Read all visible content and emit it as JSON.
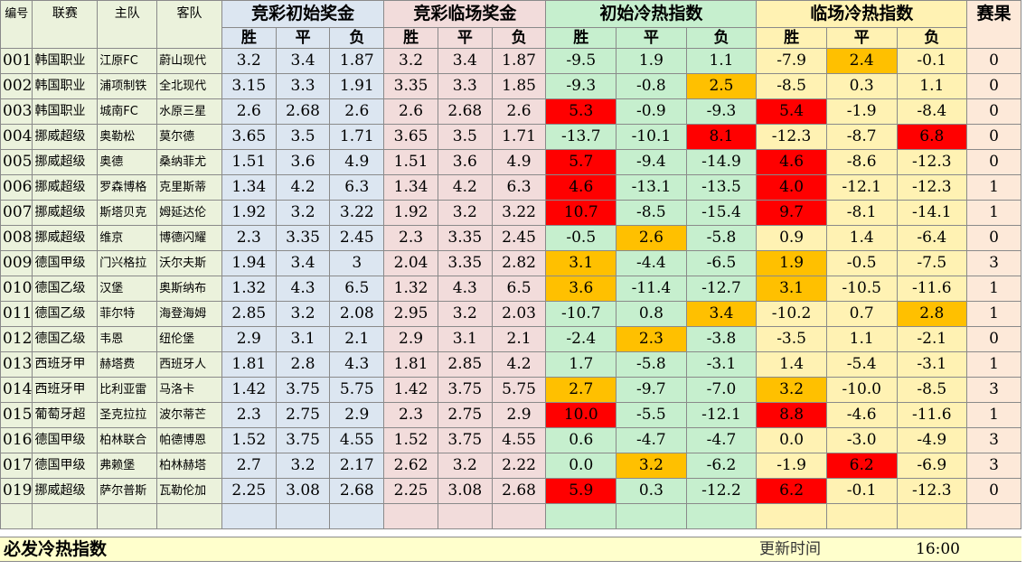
{
  "headers": {
    "id": "编号",
    "league": "联赛",
    "home": "主队",
    "away": "客队",
    "initial_odds": "竞彩初始奖金",
    "live_odds": "竞彩临场奖金",
    "initial_index": "初始冷热指数",
    "live_index": "临场冷热指数",
    "result": "赛果",
    "win": "胜",
    "draw": "平",
    "lose": "负"
  },
  "highlight_colors": {
    "red": "#ff0000",
    "orange": "#ffc000"
  },
  "rows": [
    {
      "id": "001",
      "league": "韩国职业",
      "home": "江原FC",
      "away": "蔚山现代",
      "i": [
        "3.2",
        "3.4",
        "1.87"
      ],
      "l": [
        "3.2",
        "3.4",
        "1.87"
      ],
      "ci": [
        "-9.5",
        "1.9",
        "1.1"
      ],
      "cl": [
        "-7.9",
        "2.4",
        "-0.1"
      ],
      "res": "0",
      "hi": [
        "",
        "",
        ""
      ],
      "hl": [
        "",
        "org",
        ""
      ]
    },
    {
      "id": "002",
      "league": "韩国职业",
      "home": "浦项制铁",
      "away": "全北现代",
      "i": [
        "3.15",
        "3.3",
        "1.91"
      ],
      "l": [
        "3.35",
        "3.3",
        "1.85"
      ],
      "ci": [
        "-9.3",
        "-0.8",
        "2.5"
      ],
      "cl": [
        "-8.5",
        "0.3",
        "1.1"
      ],
      "res": "0",
      "hi": [
        "",
        "",
        "org"
      ],
      "hl": [
        "",
        "",
        ""
      ]
    },
    {
      "id": "003",
      "league": "韩国职业",
      "home": "城南FC",
      "away": "水原三星",
      "i": [
        "2.6",
        "2.68",
        "2.6"
      ],
      "l": [
        "2.6",
        "2.68",
        "2.6"
      ],
      "ci": [
        "5.3",
        "-0.9",
        "-9.3"
      ],
      "cl": [
        "5.4",
        "-1.9",
        "-8.4"
      ],
      "res": "0",
      "hi": [
        "red",
        "",
        ""
      ],
      "hl": [
        "red",
        "",
        ""
      ]
    },
    {
      "id": "004",
      "league": "挪威超级",
      "home": "奥勒松",
      "away": "莫尔德",
      "i": [
        "3.65",
        "3.5",
        "1.71"
      ],
      "l": [
        "3.65",
        "3.5",
        "1.71"
      ],
      "ci": [
        "-13.7",
        "-10.1",
        "8.1"
      ],
      "cl": [
        "-12.3",
        "-8.7",
        "6.8"
      ],
      "res": "0",
      "hi": [
        "",
        "",
        "red"
      ],
      "hl": [
        "",
        "",
        "red"
      ]
    },
    {
      "id": "005",
      "league": "挪威超级",
      "home": "奥德",
      "away": "桑纳菲尤",
      "i": [
        "1.51",
        "3.6",
        "4.9"
      ],
      "l": [
        "1.51",
        "3.6",
        "4.9"
      ],
      "ci": [
        "5.7",
        "-9.4",
        "-14.9"
      ],
      "cl": [
        "4.6",
        "-8.6",
        "-12.3"
      ],
      "res": "0",
      "hi": [
        "red",
        "",
        ""
      ],
      "hl": [
        "red",
        "",
        ""
      ]
    },
    {
      "id": "006",
      "league": "挪威超级",
      "home": "罗森博格",
      "away": "克里斯蒂",
      "i": [
        "1.34",
        "4.2",
        "6.3"
      ],
      "l": [
        "1.34",
        "4.2",
        "6.3"
      ],
      "ci": [
        "4.6",
        "-13.1",
        "-13.5"
      ],
      "cl": [
        "4.0",
        "-12.1",
        "-12.3"
      ],
      "res": "1",
      "hi": [
        "red",
        "",
        ""
      ],
      "hl": [
        "red",
        "",
        ""
      ]
    },
    {
      "id": "007",
      "league": "挪威超级",
      "home": "斯塔贝克",
      "away": "姆延达伦",
      "i": [
        "1.92",
        "3.2",
        "3.22"
      ],
      "l": [
        "1.92",
        "3.2",
        "3.22"
      ],
      "ci": [
        "10.7",
        "-8.5",
        "-15.4"
      ],
      "cl": [
        "9.7",
        "-8.1",
        "-14.1"
      ],
      "res": "1",
      "hi": [
        "red",
        "",
        ""
      ],
      "hl": [
        "red",
        "",
        ""
      ]
    },
    {
      "id": "008",
      "league": "挪威超级",
      "home": "维京",
      "away": "博德闪耀",
      "i": [
        "2.3",
        "3.35",
        "2.45"
      ],
      "l": [
        "2.3",
        "3.35",
        "2.45"
      ],
      "ci": [
        "-0.5",
        "2.6",
        "-5.8"
      ],
      "cl": [
        "0.9",
        "1.4",
        "-6.4"
      ],
      "res": "0",
      "hi": [
        "",
        "org",
        ""
      ],
      "hl": [
        "",
        "",
        ""
      ]
    },
    {
      "id": "009",
      "league": "德国甲级",
      "home": "门兴格拉",
      "away": "沃尔夫斯",
      "i": [
        "1.94",
        "3.4",
        "3"
      ],
      "l": [
        "2.04",
        "3.35",
        "2.82"
      ],
      "ci": [
        "3.1",
        "-4.4",
        "-6.5"
      ],
      "cl": [
        "1.9",
        "-0.5",
        "-7.5"
      ],
      "res": "3",
      "hi": [
        "org",
        "",
        ""
      ],
      "hl": [
        "org",
        "",
        ""
      ]
    },
    {
      "id": "010",
      "league": "德国乙级",
      "home": "汉堡",
      "away": "奥斯纳布",
      "i": [
        "1.32",
        "4.3",
        "6.5"
      ],
      "l": [
        "1.32",
        "4.3",
        "6.5"
      ],
      "ci": [
        "3.6",
        "-11.4",
        "-12.7"
      ],
      "cl": [
        "3.1",
        "-10.5",
        "-11.6"
      ],
      "res": "1",
      "hi": [
        "org",
        "",
        ""
      ],
      "hl": [
        "org",
        "",
        ""
      ]
    },
    {
      "id": "011",
      "league": "德国乙级",
      "home": "菲尔特",
      "away": "海登海姆",
      "i": [
        "2.85",
        "3.2",
        "2.08"
      ],
      "l": [
        "2.95",
        "3.2",
        "2.03"
      ],
      "ci": [
        "-10.7",
        "0.8",
        "3.4"
      ],
      "cl": [
        "-10.2",
        "0.7",
        "2.8"
      ],
      "res": "1",
      "hi": [
        "",
        "",
        "org"
      ],
      "hl": [
        "",
        "",
        "org"
      ]
    },
    {
      "id": "012",
      "league": "德国乙级",
      "home": "韦恩",
      "away": "纽伦堡",
      "i": [
        "2.9",
        "3.1",
        "2.1"
      ],
      "l": [
        "2.9",
        "3.1",
        "2.1"
      ],
      "ci": [
        "-2.4",
        "2.3",
        "-3.8"
      ],
      "cl": [
        "-3.5",
        "1.1",
        "-2.1"
      ],
      "res": "0",
      "hi": [
        "",
        "org",
        ""
      ],
      "hl": [
        "",
        "",
        ""
      ]
    },
    {
      "id": "013",
      "league": "西班牙甲",
      "home": "赫塔费",
      "away": "西班牙人",
      "i": [
        "1.81",
        "2.8",
        "4.3"
      ],
      "l": [
        "1.81",
        "2.85",
        "4.2"
      ],
      "ci": [
        "1.7",
        "-5.8",
        "-3.1"
      ],
      "cl": [
        "1.4",
        "-5.4",
        "-3.1"
      ],
      "res": "1",
      "hi": [
        "",
        "",
        ""
      ],
      "hl": [
        "",
        "",
        ""
      ]
    },
    {
      "id": "014",
      "league": "西班牙甲",
      "home": "比利亚雷",
      "away": "马洛卡",
      "i": [
        "1.42",
        "3.75",
        "5.75"
      ],
      "l": [
        "1.42",
        "3.75",
        "5.75"
      ],
      "ci": [
        "2.7",
        "-9.7",
        "-7.0"
      ],
      "cl": [
        "3.2",
        "-10.0",
        "-8.5"
      ],
      "res": "3",
      "hi": [
        "org",
        "",
        ""
      ],
      "hl": [
        "org",
        "",
        ""
      ]
    },
    {
      "id": "015",
      "league": "葡萄牙超",
      "home": "圣克拉拉",
      "away": "波尔蒂芒",
      "i": [
        "2.3",
        "2.75",
        "2.9"
      ],
      "l": [
        "2.3",
        "2.75",
        "2.9"
      ],
      "ci": [
        "10.0",
        "-5.5",
        "-12.1"
      ],
      "cl": [
        "8.8",
        "-4.6",
        "-11.6"
      ],
      "res": "1",
      "hi": [
        "red",
        "",
        ""
      ],
      "hl": [
        "red",
        "",
        ""
      ]
    },
    {
      "id": "016",
      "league": "德国甲级",
      "home": "柏林联合",
      "away": "帕德博恩",
      "i": [
        "1.52",
        "3.75",
        "4.55"
      ],
      "l": [
        "1.52",
        "3.75",
        "4.55"
      ],
      "ci": [
        "0.6",
        "-4.7",
        "-4.7"
      ],
      "cl": [
        "0.0",
        "-3.0",
        "-4.9"
      ],
      "res": "3",
      "hi": [
        "",
        "",
        ""
      ],
      "hl": [
        "",
        "",
        ""
      ]
    },
    {
      "id": "017",
      "league": "德国甲级",
      "home": "弗赖堡",
      "away": "柏林赫塔",
      "i": [
        "2.7",
        "3.2",
        "2.17"
      ],
      "l": [
        "2.62",
        "3.2",
        "2.22"
      ],
      "ci": [
        "0.0",
        "3.2",
        "-6.2"
      ],
      "cl": [
        "-1.9",
        "6.2",
        "-6.9"
      ],
      "res": "3",
      "hi": [
        "",
        "org",
        ""
      ],
      "hl": [
        "",
        "red",
        ""
      ]
    },
    {
      "id": "019",
      "league": "挪威超级",
      "home": "萨尔普斯",
      "away": "瓦勒伦加",
      "i": [
        "2.25",
        "3.08",
        "2.68"
      ],
      "l": [
        "2.25",
        "3.08",
        "2.68"
      ],
      "ci": [
        "5.9",
        "0.3",
        "-12.2"
      ],
      "cl": [
        "6.2",
        "-0.1",
        "-12.3"
      ],
      "res": "0",
      "hi": [
        "red",
        "",
        ""
      ],
      "hl": [
        "red",
        "",
        ""
      ]
    }
  ],
  "footer": {
    "title": "必发冷热指数",
    "update_label": "更新时间",
    "update_time": "16:00"
  }
}
